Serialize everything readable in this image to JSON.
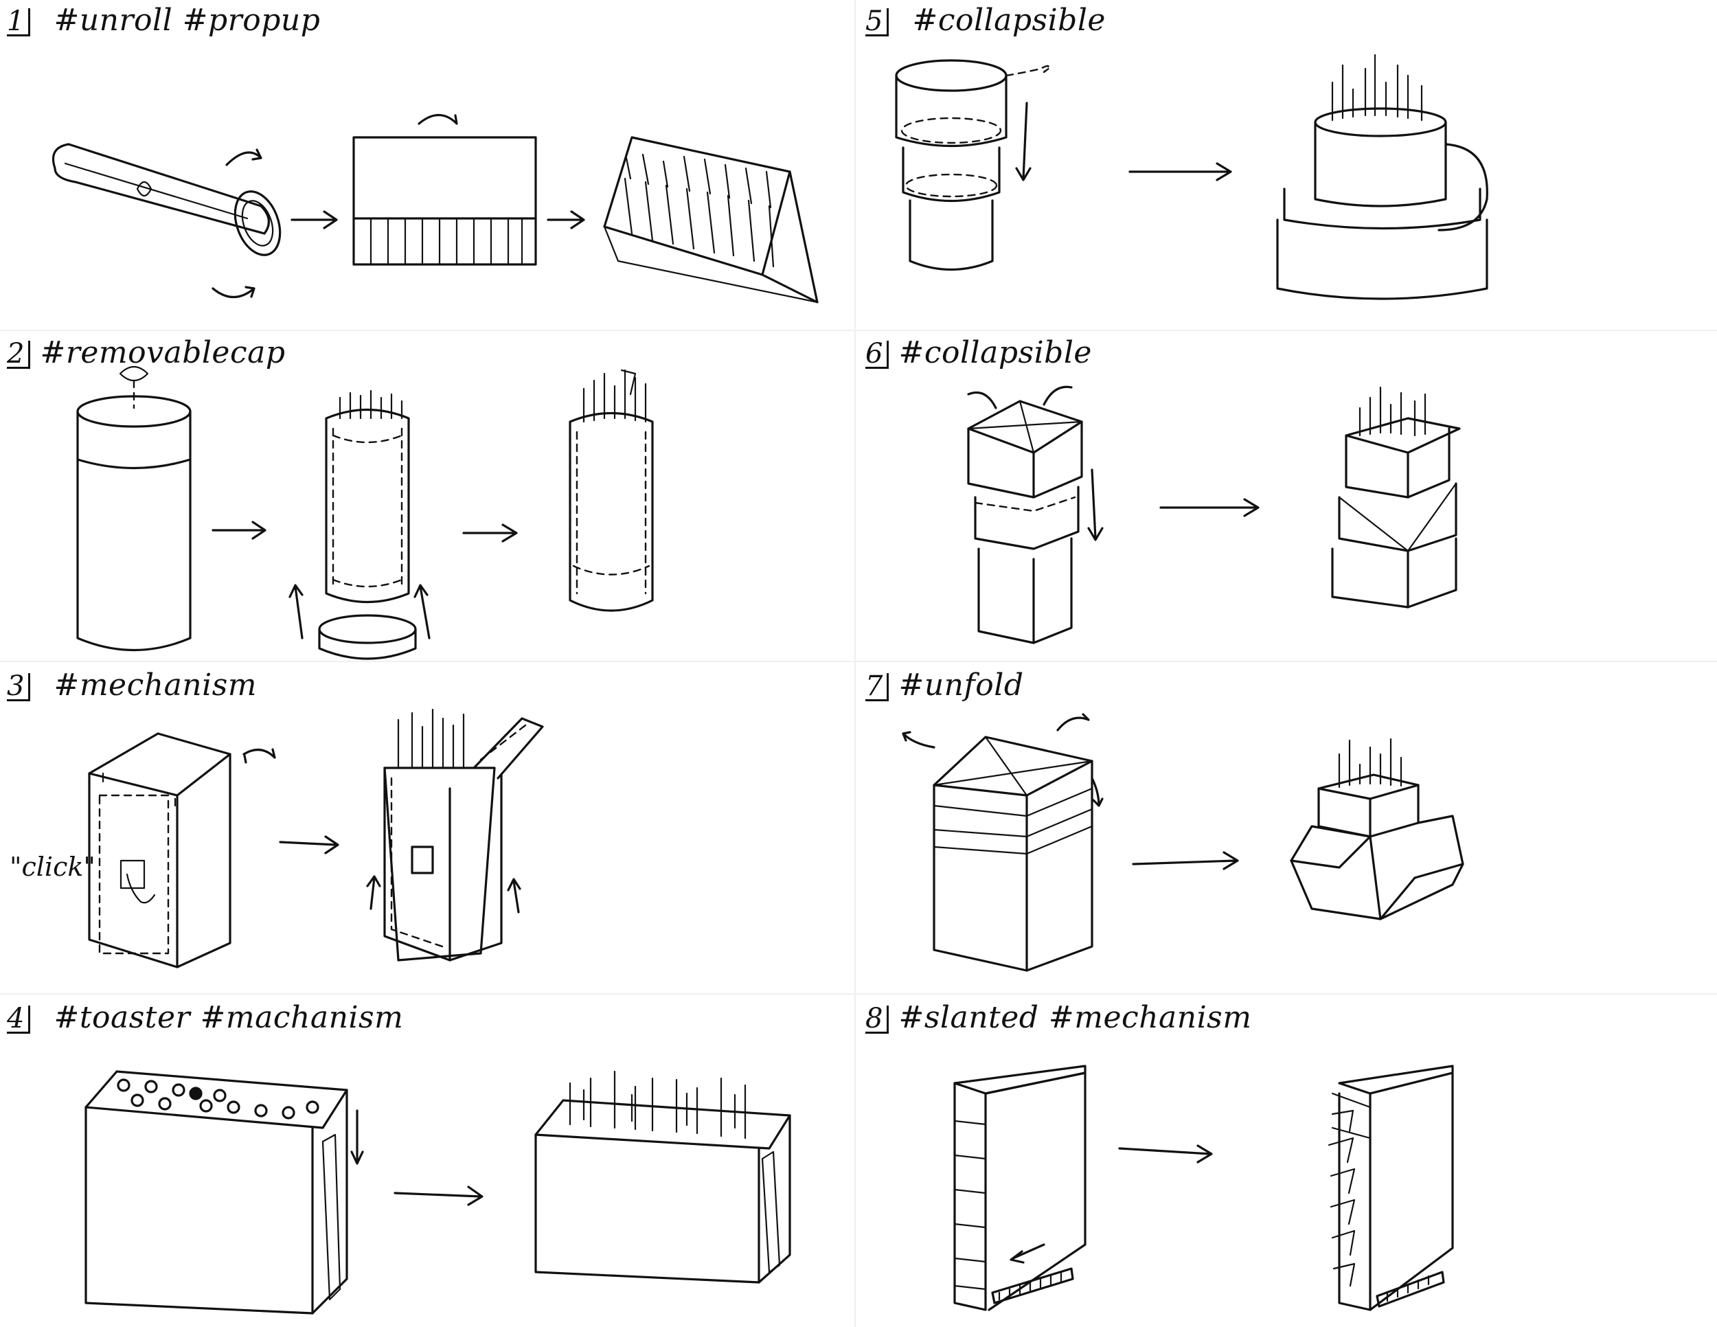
{
  "panels": [
    {
      "num": "1",
      "tags": "#unroll #propup"
    },
    {
      "num": "2",
      "tags": "#removablecap"
    },
    {
      "num": "3",
      "tags": "#mechanism"
    },
    {
      "num": "4",
      "tags": "#toaster #machanism"
    },
    {
      "num": "5",
      "tags": "#collapsible"
    },
    {
      "num": "6",
      "tags": "#collapsible"
    },
    {
      "num": "7",
      "tags": "#unfold"
    },
    {
      "num": "8",
      "tags": "#slanted #mechanism"
    }
  ],
  "annotations": {
    "click": "\"click\""
  },
  "colors": {
    "ink": "#111111",
    "paper": "#ffffff"
  },
  "icons": [
    "arrow-right-icon",
    "rotate-arrow-icon",
    "down-arrow-icon",
    "up-arrow-icon",
    "finger-press-icon"
  ]
}
